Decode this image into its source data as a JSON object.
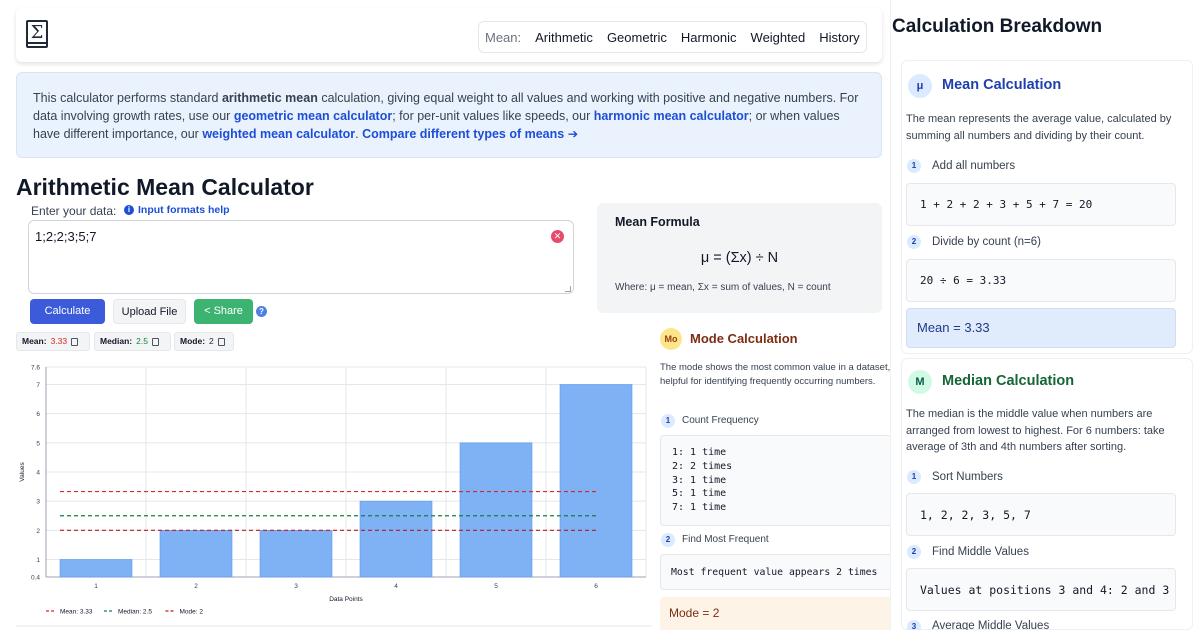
{
  "header": {
    "logo_symbol": "Σ",
    "nav_label": "Mean:",
    "nav_items": [
      "Arithmetic",
      "Geometric",
      "Harmonic",
      "Weighted",
      "History"
    ]
  },
  "banner": {
    "t1": "This calculator performs standard ",
    "b1": "arithmetic mean",
    "t2": " calculation, giving equal weight to all values and working with positive and negative numbers. For data involving growth rates, use our ",
    "l1": "geometric mean calculator",
    "t3": "; for per-unit values like speeds, our ",
    "l2": "harmonic mean calculator",
    "t4": "; or when values have different importance, our ",
    "l3": "weighted mean calculator",
    "t5": ". ",
    "l4": "Compare different types of means ➔"
  },
  "page_title": "Arithmetic Mean Calculator",
  "input": {
    "label": "Enter your data:",
    "help": "Input formats help",
    "value": "1;2;2;3;5;7"
  },
  "buttons": {
    "calculate": "Calculate",
    "upload": "Upload File",
    "share": "Share"
  },
  "stats": [
    {
      "label": "Mean:",
      "value": "3.33",
      "color": "#dc2626"
    },
    {
      "label": "Median:",
      "value": "2.5",
      "color": "#15803d"
    },
    {
      "label": "Mode:",
      "value": "2",
      "color": "#374151"
    }
  ],
  "formula": {
    "title": "Mean Formula",
    "equation": "μ = (Σx) ÷ N",
    "where": "Where: μ = mean, Σx = sum of values, N = count"
  },
  "mode": {
    "badge": "Mo",
    "title": "Mode Calculation",
    "desc": "The mode shows the most common value in a dataset, helpful for identifying frequently occurring numbers.",
    "step1": "Count Frequency",
    "freq": "1: 1 time\n2: 2 times\n3: 1 time\n5: 1 time\n7: 1 time",
    "step2": "Find Most Frequent",
    "most": "Most frequent value appears 2 times",
    "result": "Mode = 2"
  },
  "sidebar": {
    "title": "Calculation Breakdown",
    "mean": {
      "badge": "μ",
      "title": "Mean Calculation",
      "desc": "The mean represents the average value, calculated by summing all numbers and dividing by their count.",
      "step1": "Add all numbers",
      "sum": "1 + 2 + 2 + 3 + 5 + 7 = 20",
      "step2": "Divide by count (n=6)",
      "div": "20 ÷ 6 = 3.33",
      "result": "Mean = 3.33"
    },
    "median": {
      "badge": "M",
      "title": "Median Calculation",
      "desc": "The median is the middle value when numbers are arranged from lowest to highest. For 6 numbers: take average of 3th and 4th numbers after sorting.",
      "step1": "Sort Numbers",
      "sorted": "1, 2, 2, 3, 5, 7",
      "step2": "Find Middle Values",
      "middle": "Values at positions 3 and 4: 2 and 3",
      "step3": "Average Middle Values"
    }
  },
  "chart_data": {
    "type": "bar",
    "categories": [
      "1",
      "2",
      "3",
      "4",
      "5",
      "6"
    ],
    "values": [
      1,
      2,
      2,
      3,
      5,
      7
    ],
    "xlabel": "Data Points",
    "ylabel": "Values",
    "ylim": [
      0.4,
      7.6
    ],
    "yticks": [
      "0.4",
      "1",
      "2",
      "3",
      "4",
      "5",
      "6",
      "7",
      "7.6"
    ],
    "bar_color": "#7fb1f5",
    "grid": true,
    "lines": [
      {
        "name": "Mean: 3.33",
        "value": 3.33,
        "color": "#dc2626"
      },
      {
        "name": "Median: 2.5",
        "value": 2.5,
        "color": "#15803d"
      },
      {
        "name": "Mode: 2",
        "value": 2,
        "color": "#b91c1c"
      }
    ],
    "legend": "bottom-left"
  }
}
